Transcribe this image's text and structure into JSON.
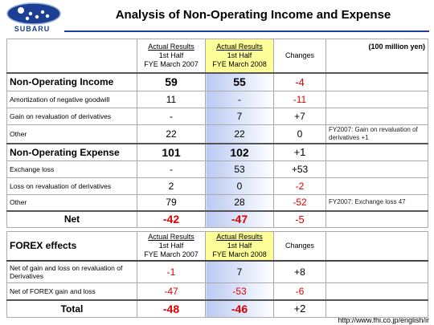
{
  "header": {
    "logo": "SUBARU",
    "title": "Analysis of Non-Operating Income and Expense"
  },
  "unit": "(100 million yen)",
  "table1": {
    "columns": [
      [
        "Actual Results",
        "1st Half",
        "FYE March 2007"
      ],
      [
        "Actual Results",
        "1st Half",
        "FYE March 2008"
      ],
      [
        "Changes"
      ]
    ],
    "rows": [
      {
        "label": "Non-Operating Income",
        "values": [
          "59",
          "55",
          "-4"
        ]
      },
      {
        "label": "Amortization of negative goodwill",
        "values": [
          "11",
          "-",
          "-11"
        ]
      },
      {
        "label": "Gain on revaluation of derivatives",
        "values": [
          "-",
          "7",
          "+7"
        ]
      },
      {
        "label": "Other",
        "values": [
          "22",
          "22",
          "0"
        ],
        "note": "FY2007: Gain on revaluation of derivatives +1"
      },
      {
        "label": "Non-Operating Expense",
        "values": [
          "101",
          "102",
          "+1"
        ]
      },
      {
        "label": "Exchange loss",
        "values": [
          "-",
          "53",
          "+53"
        ]
      },
      {
        "label": "Loss on revaluation of derivatives",
        "values": [
          "2",
          "0",
          "-2"
        ]
      },
      {
        "label": "Other",
        "values": [
          "79",
          "28",
          "-52"
        ],
        "note": "FY2007: Exchange loss 47"
      },
      {
        "label": "Net",
        "values": [
          "-42",
          "-47",
          "-5"
        ]
      }
    ]
  },
  "table2": {
    "title": "FOREX effects",
    "columns": [
      [
        "Actual Results",
        "1st Half",
        "FYE March 2007"
      ],
      [
        "Actual Results",
        "1st Half",
        "FYE March 2008"
      ],
      [
        "Changes"
      ]
    ],
    "rows": [
      {
        "label": "Net of gain and loss on revaluation of Derivatives",
        "values": [
          "-1",
          "7",
          "+8"
        ]
      },
      {
        "label": "Net of FOREX gain and loss",
        "values": [
          "-47",
          "-53",
          "-6"
        ]
      },
      {
        "label": "Total",
        "values": [
          "-48",
          "-46",
          "+2"
        ]
      }
    ]
  },
  "footer": {
    "url": "http://www.fhi.co.jp/english/ir"
  }
}
